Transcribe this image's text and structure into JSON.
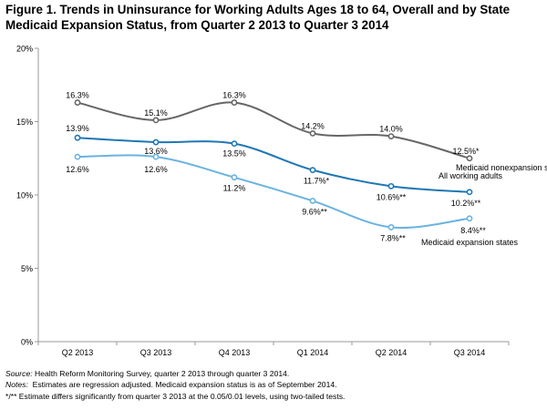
{
  "title": "Figure 1. Trends in Uninsurance for Working Adults Ages 18 to 64, Overall and by State Medicaid Expansion Status, from Quarter 2 2013 to Quarter 3 2014",
  "notes": {
    "source_label": "Source:",
    "source_text": "Health Reform Monitoring Survey, quarter 2 2013 through quarter 3 2014.",
    "notes_label": "Notes:",
    "notes_text": "Estimates are regression adjusted. Medicaid expansion status is as of September 2014.",
    "significance": "*/** Estimate differs significantly from quarter 3 2013 at the 0.05/0.01 levels, using two-tailed tests."
  },
  "chart_data": {
    "type": "line",
    "title": "Figure 1. Trends in Uninsurance for Working Adults Ages 18 to 64, Overall and by State Medicaid Expansion Status, from Quarter 2 2013 to Quarter 3 2014",
    "xlabel": "",
    "ylabel": "",
    "categories": [
      "Q2 2013",
      "Q3 2013",
      "Q4 2013",
      "Q1 2014",
      "Q2 2014",
      "Q3 2014"
    ],
    "yticks": [
      "0%",
      "5%",
      "10%",
      "15%",
      "20%"
    ],
    "ylim": [
      0,
      20
    ],
    "grid": false,
    "legend": "direct labels at right end of each line",
    "series": [
      {
        "name": "Medicaid nonexpansion states",
        "color": "#666666",
        "values": [
          16.3,
          15.1,
          16.3,
          14.2,
          14.0,
          12.5
        ],
        "labels": [
          "16.3%",
          "15.1%",
          "16.3%",
          "14.2%",
          "14.0%",
          "12.5%*"
        ]
      },
      {
        "name": "All working adults",
        "color": "#1f77b4",
        "values": [
          13.9,
          13.6,
          13.5,
          11.7,
          10.6,
          10.2
        ],
        "labels": [
          "13.9%",
          "13.6%",
          "13.5%",
          "11.7%*",
          "10.6%**",
          "10.2%**"
        ]
      },
      {
        "name": "Medicaid expansion states",
        "color": "#6ab3e0",
        "values": [
          12.6,
          12.6,
          11.2,
          9.6,
          7.8,
          8.4
        ],
        "labels": [
          "12.6%",
          "12.6%",
          "11.2%",
          "9.6%**",
          "7.8%**",
          "8.4%**"
        ]
      }
    ]
  }
}
